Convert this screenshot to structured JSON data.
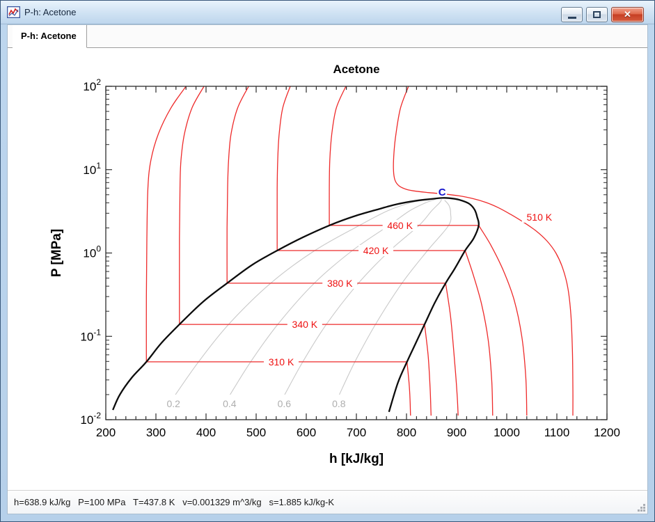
{
  "window": {
    "title": "P-h: Acetone",
    "close_glyph": "✕"
  },
  "tabs": [
    {
      "label": "P-h: Acetone",
      "active": true
    }
  ],
  "status_bar": {
    "text": "h=638.9 kJ/kg   P=100 MPa   T=437.8 K   v=0.001329 m^3/kg   s=1.885 kJ/kg-K"
  },
  "chart_data": {
    "type": "line",
    "title": "Acetone",
    "xlabel": "h [kJ/kg]",
    "ylabel": "P [MPa]",
    "xlim": [
      200,
      1200
    ],
    "x_major_step": 100,
    "x_minor_step": 20,
    "y_scale": "log",
    "ylim": [
      0.01,
      100
    ],
    "y_decades": [
      2,
      1,
      0,
      -1,
      -2
    ],
    "grid": false,
    "legend": "none",
    "colors": {
      "isotherm": "#ee2a2a",
      "isotherm_label": "#ee1111",
      "dome": "#0d0d0d",
      "quality": "#c9c9c9",
      "quality_label": "#aeaeae",
      "critical": "#1313cc",
      "axis": "#2b2b2b"
    },
    "dome": {
      "name": "saturation-dome",
      "points": [
        [
          214,
          0.0131
        ],
        [
          228,
          0.02
        ],
        [
          252,
          0.032
        ],
        [
          281,
          0.0494
        ],
        [
          310,
          0.082
        ],
        [
          347,
          0.139
        ],
        [
          394,
          0.26
        ],
        [
          442,
          0.434
        ],
        [
          492,
          0.72
        ],
        [
          542,
          1.07
        ],
        [
          594,
          1.55
        ],
        [
          646,
          2.14
        ],
        [
          695,
          2.75
        ],
        [
          740,
          3.3
        ],
        [
          781,
          3.85
        ],
        [
          820,
          4.25
        ],
        [
          850,
          4.45
        ],
        [
          871,
          4.58
        ],
        [
          885,
          4.55
        ],
        [
          905,
          4.35
        ],
        [
          925,
          3.9
        ],
        [
          936,
          3.3
        ],
        [
          941,
          2.7
        ],
        [
          944,
          2.14
        ],
        [
          934,
          1.5
        ],
        [
          917,
          1.07
        ],
        [
          897,
          0.66
        ],
        [
          878,
          0.434
        ],
        [
          856,
          0.25
        ],
        [
          836,
          0.139
        ],
        [
          818,
          0.082
        ],
        [
          801,
          0.0494
        ],
        [
          783,
          0.028
        ],
        [
          765,
          0.0124
        ]
      ]
    },
    "critical_point": {
      "label": "C",
      "pos": [
        871,
        5.4
      ]
    },
    "isotherms": [
      {
        "label": "310 K",
        "label_pos": [
          550,
          0.0494
        ],
        "liquid": [
          [
            360,
            100
          ],
          [
            330,
            55
          ],
          [
            305,
            27
          ],
          [
            290,
            13
          ],
          [
            284,
            6
          ],
          [
            282,
            1.5
          ],
          [
            281,
            0.3
          ],
          [
            281,
            0.0494
          ]
        ],
        "twophase": [
          [
            281,
            0.0494
          ],
          [
            801,
            0.0494
          ]
        ],
        "vapor": [
          [
            801,
            0.0494
          ],
          [
            805,
            0.028
          ],
          [
            807,
            0.018
          ],
          [
            808,
            0.0112
          ]
        ]
      },
      {
        "label": "340 K",
        "label_pos": [
          597,
          0.139
        ],
        "liquid": [
          [
            396,
            100
          ],
          [
            372,
            55
          ],
          [
            357,
            27
          ],
          [
            350,
            13
          ],
          [
            348,
            6
          ],
          [
            347,
            1.5
          ],
          [
            347,
            0.139
          ]
        ],
        "twophase": [
          [
            347,
            0.139
          ],
          [
            836,
            0.139
          ]
        ],
        "vapor": [
          [
            836,
            0.139
          ],
          [
            843,
            0.06
          ],
          [
            847,
            0.025
          ],
          [
            849,
            0.0112
          ]
        ]
      },
      {
        "label": "380 K",
        "label_pos": [
          667,
          0.434
        ],
        "liquid": [
          [
            485,
            100
          ],
          [
            463,
            55
          ],
          [
            450,
            27
          ],
          [
            445,
            13
          ],
          [
            443,
            6
          ],
          [
            442,
            2
          ],
          [
            442,
            0.434
          ]
        ],
        "twophase": [
          [
            442,
            0.434
          ],
          [
            878,
            0.434
          ]
        ],
        "vapor": [
          [
            878,
            0.434
          ],
          [
            888,
            0.17
          ],
          [
            896,
            0.05
          ],
          [
            901,
            0.02
          ],
          [
            903,
            0.0112
          ]
        ]
      },
      {
        "label": "420 K",
        "label_pos": [
          739,
          1.07
        ],
        "liquid": [
          [
            568,
            100
          ],
          [
            553,
            55
          ],
          [
            546,
            27
          ],
          [
            543,
            13
          ],
          [
            542,
            6
          ],
          [
            542,
            1.07
          ]
        ],
        "twophase": [
          [
            542,
            1.07
          ],
          [
            917,
            1.07
          ]
        ],
        "vapor": [
          [
            917,
            1.07
          ],
          [
            933,
            0.55
          ],
          [
            950,
            0.24
          ],
          [
            963,
            0.09
          ],
          [
            970,
            0.03
          ],
          [
            972,
            0.0112
          ]
        ]
      },
      {
        "label": "460 K",
        "label_pos": [
          787,
          2.14
        ],
        "liquid": [
          [
            679,
            100
          ],
          [
            660,
            55
          ],
          [
            651,
            27
          ],
          [
            647,
            13
          ],
          [
            646,
            6
          ],
          [
            646,
            2.14
          ]
        ],
        "twophase": [
          [
            646,
            2.14
          ],
          [
            944,
            2.14
          ]
        ],
        "vapor": [
          [
            944,
            2.14
          ],
          [
            968,
            1.25
          ],
          [
            993,
            0.62
          ],
          [
            1015,
            0.27
          ],
          [
            1030,
            0.1
          ],
          [
            1038,
            0.032
          ],
          [
            1040,
            0.0112
          ]
        ]
      },
      {
        "label": "510 K",
        "label_pos": [
          1065,
          2.7
        ],
        "liquid": [
          [
            804,
            100
          ],
          [
            788,
            55
          ],
          [
            779,
            27
          ],
          [
            775,
            16
          ],
          [
            774,
            10
          ],
          [
            777,
            7.5
          ],
          [
            785,
            6.4
          ],
          [
            800,
            5.8
          ],
          [
            820,
            5.5
          ],
          [
            845,
            5.3
          ],
          [
            875,
            5.1
          ],
          [
            905,
            4.85
          ],
          [
            932,
            4.5
          ],
          [
            958,
            4.05
          ],
          [
            983,
            3.5
          ],
          [
            1008,
            2.9
          ],
          [
            1033,
            2.35
          ],
          [
            1058,
            1.85
          ],
          [
            1080,
            1.4
          ],
          [
            1098,
            1.0
          ],
          [
            1112,
            0.65
          ],
          [
            1122,
            0.38
          ],
          [
            1128,
            0.18
          ],
          [
            1131,
            0.07
          ],
          [
            1132,
            0.025
          ],
          [
            1132,
            0.0112
          ]
        ]
      }
    ],
    "quality_lines": [
      {
        "label": "0.2",
        "label_pos": [
          335,
          0.0156
        ],
        "points": [
          [
            339,
            0.02
          ],
          [
            385,
            0.0494
          ],
          [
            445,
            0.139
          ],
          [
            529,
            0.434
          ],
          [
            617,
            1.07
          ],
          [
            706,
            2.14
          ],
          [
            762,
            3.2
          ],
          [
            808,
            4.0
          ],
          [
            845,
            4.4
          ]
        ]
      },
      {
        "label": "0.4",
        "label_pos": [
          447,
          0.0156
        ],
        "points": [
          [
            448,
            0.02
          ],
          [
            489,
            0.0494
          ],
          [
            543,
            0.139
          ],
          [
            616,
            0.434
          ],
          [
            692,
            1.07
          ],
          [
            765,
            2.14
          ],
          [
            806,
            3.2
          ],
          [
            838,
            4.0
          ],
          [
            858,
            4.4
          ]
        ]
      },
      {
        "label": "0.6",
        "label_pos": [
          556,
          0.0156
        ],
        "points": [
          [
            557,
            0.02
          ],
          [
            593,
            0.0494
          ],
          [
            640,
            0.139
          ],
          [
            704,
            0.434
          ],
          [
            767,
            1.07
          ],
          [
            825,
            2.14
          ],
          [
            850,
            3.2
          ],
          [
            866,
            4.0
          ],
          [
            870,
            4.4
          ]
        ]
      },
      {
        "label": "0.8",
        "label_pos": [
          665,
          0.0156
        ],
        "points": [
          [
            666,
            0.02
          ],
          [
            697,
            0.0494
          ],
          [
            738,
            0.139
          ],
          [
            791,
            0.434
          ],
          [
            842,
            1.07
          ],
          [
            884,
            2.14
          ],
          [
            888,
            3.0
          ],
          [
            885,
            3.7
          ],
          [
            876,
            4.3
          ]
        ]
      }
    ]
  }
}
